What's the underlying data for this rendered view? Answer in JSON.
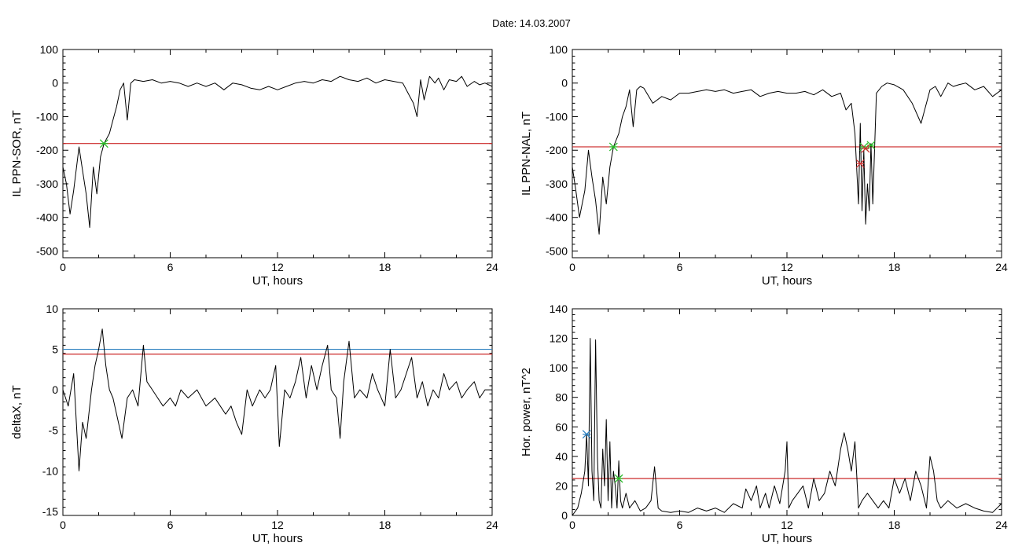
{
  "title": "Date:  14.03.2007",
  "chart_data": [
    {
      "type": "line",
      "xlabel": "UT, hours",
      "ylabel": "IL PPN-SOR, nT",
      "xlim": [
        0,
        24
      ],
      "ylim": [
        -520,
        100
      ],
      "xticks": [
        0,
        6,
        12,
        18,
        24
      ],
      "yticks": [
        100,
        0,
        -100,
        -200,
        -300,
        -400,
        -500
      ],
      "threshold": {
        "value": -180,
        "color": "#cc2a2a"
      },
      "markers": [
        {
          "x": 2.3,
          "y": -180,
          "color": "#22bb22"
        }
      ],
      "series": [
        {
          "color": "#000000",
          "x": [
            0,
            0.2,
            0.4,
            0.6,
            0.9,
            1.1,
            1.3,
            1.5,
            1.7,
            1.9,
            2.1,
            2.3,
            2.6,
            2.8,
            3.0,
            3.2,
            3.4,
            3.6,
            3.8,
            4.0,
            4.5,
            5.0,
            5.5,
            6.0,
            6.5,
            7.0,
            7.5,
            8.0,
            8.5,
            9.0,
            9.5,
            10.0,
            10.5,
            11.0,
            11.5,
            12.0,
            12.5,
            13.0,
            13.5,
            14.0,
            14.5,
            15.0,
            15.5,
            16.0,
            16.5,
            17.0,
            17.5,
            18.0,
            18.5,
            19.0,
            19.3,
            19.6,
            19.8,
            20.0,
            20.2,
            20.5,
            20.8,
            21.0,
            21.3,
            21.6,
            22.0,
            22.3,
            22.6,
            23.0,
            23.3,
            23.6,
            24.0
          ],
          "y": [
            -250,
            -300,
            -390,
            -320,
            -190,
            -260,
            -330,
            -430,
            -250,
            -330,
            -220,
            -180,
            -150,
            -110,
            -70,
            -20,
            0,
            -110,
            0,
            10,
            5,
            10,
            0,
            5,
            0,
            -10,
            0,
            -10,
            0,
            -20,
            0,
            -5,
            -15,
            -20,
            -10,
            -20,
            -10,
            0,
            5,
            0,
            10,
            5,
            20,
            10,
            5,
            15,
            0,
            10,
            5,
            0,
            -30,
            -60,
            -100,
            10,
            -50,
            20,
            0,
            15,
            -20,
            10,
            5,
            20,
            -10,
            5,
            -5,
            0,
            -10
          ]
        }
      ]
    },
    {
      "type": "line",
      "xlabel": "UT, hours",
      "ylabel": "IL PPN-NAL, nT",
      "xlim": [
        0,
        24
      ],
      "ylim": [
        -520,
        100
      ],
      "xticks": [
        0,
        6,
        12,
        18,
        24
      ],
      "yticks": [
        100,
        0,
        -100,
        -200,
        -300,
        -400,
        -500
      ],
      "threshold": {
        "value": -190,
        "color": "#cc2a2a"
      },
      "markers": [
        {
          "x": 2.3,
          "y": -190,
          "color": "#22bb22"
        },
        {
          "x": 16.3,
          "y": -190,
          "color": "#22bb22"
        },
        {
          "x": 16.7,
          "y": -185,
          "color": "#22bb22"
        },
        {
          "x": 16.1,
          "y": -240,
          "color": "#cc2a2a"
        },
        {
          "x": 16.4,
          "y": -195,
          "color": "#cc2a2a"
        }
      ],
      "series": [
        {
          "color": "#000000",
          "x": [
            0,
            0.2,
            0.4,
            0.7,
            0.9,
            1.1,
            1.3,
            1.5,
            1.7,
            1.9,
            2.1,
            2.3,
            2.6,
            2.8,
            3.0,
            3.2,
            3.4,
            3.6,
            3.8,
            4.0,
            4.5,
            5.0,
            5.5,
            6.0,
            6.5,
            7.0,
            7.5,
            8.0,
            8.5,
            9.0,
            9.5,
            10.0,
            10.5,
            11.0,
            11.5,
            12.0,
            12.5,
            13.0,
            13.5,
            14.0,
            14.5,
            15.0,
            15.3,
            15.6,
            15.8,
            16.0,
            16.1,
            16.2,
            16.3,
            16.4,
            16.5,
            16.6,
            16.7,
            16.8,
            17.0,
            17.3,
            17.6,
            18.0,
            18.5,
            19.0,
            19.5,
            20.0,
            20.3,
            20.6,
            21.0,
            21.3,
            21.6,
            22.0,
            22.5,
            23.0,
            23.5,
            24.0
          ],
          "y": [
            -250,
            -320,
            -400,
            -320,
            -200,
            -280,
            -350,
            -450,
            -280,
            -360,
            -250,
            -190,
            -150,
            -100,
            -70,
            -20,
            -130,
            -20,
            -10,
            -15,
            -60,
            -40,
            -50,
            -30,
            -30,
            -25,
            -20,
            -25,
            -20,
            -30,
            -25,
            -20,
            -40,
            -30,
            -25,
            -30,
            -30,
            -25,
            -35,
            -20,
            -40,
            -30,
            -80,
            -60,
            -150,
            -360,
            -120,
            -380,
            -200,
            -420,
            -300,
            -380,
            -180,
            -360,
            -30,
            -10,
            0,
            -5,
            -20,
            -60,
            -120,
            -20,
            -10,
            -40,
            0,
            -10,
            -5,
            0,
            -20,
            -10,
            -40,
            -20
          ]
        }
      ]
    },
    {
      "type": "line",
      "xlabel": "UT, hours",
      "ylabel": "deltaX, nT",
      "xlim": [
        0,
        24
      ],
      "ylim": [
        -15.5,
        10
      ],
      "xticks": [
        0,
        6,
        12,
        18,
        24
      ],
      "yticks": [
        10,
        5,
        0,
        -5,
        -10,
        -15
      ],
      "thresholds": [
        {
          "value": 5.0,
          "color": "#2a7fbf"
        },
        {
          "value": 4.4,
          "color": "#cc2a2a"
        }
      ],
      "series": [
        {
          "color": "#000000",
          "x": [
            0,
            0.3,
            0.6,
            0.9,
            1.1,
            1.3,
            1.6,
            1.8,
            2.0,
            2.2,
            2.4,
            2.6,
            2.8,
            3.0,
            3.3,
            3.6,
            3.9,
            4.2,
            4.5,
            4.7,
            5.0,
            5.3,
            5.6,
            6.0,
            6.3,
            6.6,
            7.0,
            7.5,
            8.0,
            8.5,
            8.8,
            9.1,
            9.4,
            9.7,
            10.0,
            10.3,
            10.6,
            11.0,
            11.3,
            11.6,
            11.9,
            12.1,
            12.4,
            12.7,
            13.0,
            13.3,
            13.6,
            13.9,
            14.2,
            14.5,
            14.8,
            15.0,
            15.3,
            15.5,
            15.7,
            16.0,
            16.3,
            16.6,
            17.0,
            17.3,
            17.6,
            18.0,
            18.3,
            18.6,
            18.9,
            19.2,
            19.5,
            19.8,
            20.1,
            20.4,
            20.7,
            21.0,
            21.3,
            21.6,
            22.0,
            22.3,
            22.6,
            23.0,
            23.3,
            23.6,
            24.0
          ],
          "y": [
            0,
            -2,
            2,
            -10,
            -4,
            -6,
            0,
            3,
            5,
            7.5,
            3,
            0,
            -1,
            -3,
            -6,
            -1,
            0,
            -2,
            5.5,
            1,
            0,
            -1,
            -2,
            -1,
            -2,
            0,
            -1,
            0,
            -2,
            -1,
            -2,
            -3,
            -2,
            -4,
            -5.5,
            0,
            -2,
            0,
            -1,
            0,
            3,
            -7,
            0,
            -1,
            1,
            4,
            -1,
            3,
            0,
            3,
            5.5,
            0,
            -1,
            -6,
            1,
            6,
            -1,
            0,
            -1,
            2,
            0,
            -2,
            5,
            -1,
            0,
            2,
            4,
            -1,
            1,
            -2,
            0,
            -1,
            2,
            0,
            1,
            -1,
            0,
            1,
            -1,
            0,
            0
          ]
        }
      ]
    },
    {
      "type": "line",
      "xlabel": "UT, hours",
      "ylabel": "Hor. power, nT^2",
      "xlim": [
        0,
        24
      ],
      "ylim": [
        0,
        140
      ],
      "xticks": [
        0,
        6,
        12,
        18,
        24
      ],
      "yticks": [
        0,
        20,
        40,
        60,
        80,
        100,
        120,
        140
      ],
      "threshold": {
        "value": 25,
        "color": "#cc2a2a"
      },
      "markers": [
        {
          "x": 0.8,
          "y": 55,
          "color": "#2a7fbf"
        },
        {
          "x": 2.6,
          "y": 25,
          "color": "#22bb22"
        }
      ],
      "series": [
        {
          "color": "#000000",
          "x": [
            0,
            0.3,
            0.5,
            0.7,
            0.8,
            0.9,
            1.0,
            1.1,
            1.2,
            1.3,
            1.4,
            1.5,
            1.6,
            1.7,
            1.8,
            1.9,
            2.0,
            2.1,
            2.2,
            2.3,
            2.4,
            2.5,
            2.6,
            2.7,
            2.8,
            3.0,
            3.2,
            3.5,
            3.8,
            4.1,
            4.4,
            4.6,
            4.8,
            5.0,
            5.5,
            6.0,
            6.5,
            7.0,
            7.5,
            8.0,
            8.5,
            9.0,
            9.5,
            9.7,
            10.0,
            10.3,
            10.5,
            10.8,
            11.0,
            11.3,
            11.6,
            11.9,
            12.0,
            12.1,
            12.3,
            12.6,
            12.9,
            13.2,
            13.5,
            13.8,
            14.1,
            14.4,
            14.7,
            15.0,
            15.2,
            15.4,
            15.6,
            15.8,
            16.0,
            16.2,
            16.5,
            16.8,
            17.1,
            17.4,
            17.7,
            18.0,
            18.3,
            18.6,
            18.9,
            19.2,
            19.5,
            19.8,
            20.0,
            20.2,
            20.4,
            20.6,
            21.0,
            21.5,
            22.0,
            22.5,
            23.0,
            23.5,
            24.0
          ],
          "y": [
            0,
            5,
            15,
            30,
            55,
            20,
            120,
            30,
            10,
            119,
            40,
            10,
            5,
            45,
            20,
            65,
            10,
            50,
            5,
            30,
            20,
            5,
            37,
            10,
            5,
            15,
            5,
            10,
            3,
            5,
            10,
            33,
            5,
            3,
            2,
            3,
            2,
            5,
            3,
            5,
            2,
            8,
            5,
            18,
            10,
            20,
            5,
            15,
            5,
            20,
            8,
            30,
            50,
            5,
            10,
            15,
            20,
            5,
            25,
            10,
            15,
            30,
            20,
            45,
            56,
            45,
            30,
            50,
            5,
            10,
            15,
            10,
            5,
            10,
            5,
            25,
            15,
            25,
            10,
            30,
            20,
            5,
            40,
            30,
            10,
            5,
            10,
            5,
            8,
            5,
            3,
            2,
            8
          ]
        }
      ]
    }
  ]
}
